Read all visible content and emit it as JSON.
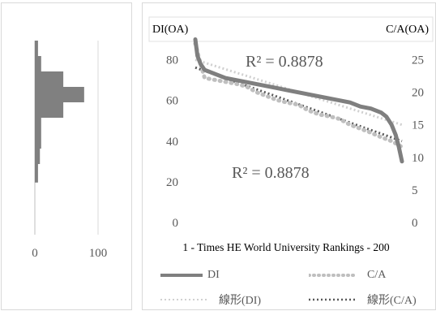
{
  "chart_data": [
    {
      "type": "bar",
      "orientation": "horizontal",
      "description_of_axes": "histogram",
      "x_ticks": [
        "0",
        "100"
      ],
      "xlim": [
        0,
        100
      ],
      "bins": [
        {
          "from": 0,
          "to": 8,
          "value": 0
        },
        {
          "from": 8,
          "to": 20,
          "value": 5
        },
        {
          "from": 20,
          "to": 30,
          "value": 8
        },
        {
          "from": 30,
          "to": 40,
          "value": 10
        },
        {
          "from": 40,
          "to": 50,
          "value": 10
        },
        {
          "from": 50,
          "to": 60,
          "value": 45
        },
        {
          "from": 60,
          "to": 70,
          "value": 78
        },
        {
          "from": 70,
          "to": 80,
          "value": 45
        },
        {
          "from": 80,
          "to": 90,
          "value": 10
        },
        {
          "from": 90,
          "to": 100,
          "value": 5
        }
      ]
    },
    {
      "type": "line",
      "left_axis_title": "DI(OA)",
      "right_axis_title": "C/A(OA)",
      "x_label": "1 - Times HE World University Rankings - 200",
      "y_left_ticks": [
        "0",
        "20",
        "40",
        "60",
        "80"
      ],
      "y_left_range": [
        0,
        93
      ],
      "y_right_ticks": [
        "0",
        "5",
        "10",
        "15",
        "20",
        "25"
      ],
      "y_right_range": [
        0,
        29.06
      ],
      "x_range": [
        1,
        200
      ],
      "annotations": [
        "R² = 0.8878",
        "R² = 0.8878"
      ],
      "series": [
        {
          "name": "DI",
          "axis": "left",
          "color": "#7f7f7f",
          "x": [
            1,
            3,
            6,
            10,
            15,
            20,
            30,
            40,
            50,
            60,
            70,
            80,
            90,
            100,
            110,
            120,
            130,
            140,
            150,
            160,
            170,
            180,
            185,
            190,
            194,
            197,
            200
          ],
          "y": [
            90,
            82,
            78,
            75,
            74,
            73,
            71,
            70,
            69,
            68,
            67,
            66,
            65,
            64,
            63,
            62,
            61,
            60,
            59,
            57,
            56,
            54,
            52,
            48,
            43,
            37,
            30
          ]
        },
        {
          "name": "C/A",
          "axis": "right",
          "color": "#bfbfbf",
          "style": "dotted",
          "x": [
            1,
            5,
            10,
            20,
            30,
            40,
            50,
            60,
            70,
            80,
            90,
            100,
            110,
            120,
            130,
            140,
            150,
            160,
            170,
            180,
            190,
            200
          ],
          "y": [
            27.5,
            25.0,
            22.2,
            21.9,
            21.6,
            21.3,
            20.9,
            20.0,
            19.4,
            18.8,
            18.4,
            18.1,
            17.2,
            16.6,
            16.3,
            15.9,
            15.0,
            14.4,
            13.8,
            13.1,
            12.5,
            11.6
          ]
        },
        {
          "name": "線形(DI)",
          "axis": "left",
          "color": "#d0d0d0",
          "style": "dotted",
          "x": [
            1,
            200
          ],
          "y": [
            80,
            48
          ]
        },
        {
          "name": "線形(C/A)",
          "axis": "right",
          "color": "#595959",
          "style": "dotted",
          "x": [
            1,
            200
          ],
          "y": [
            23.8,
            12.5
          ]
        }
      ]
    }
  ]
}
